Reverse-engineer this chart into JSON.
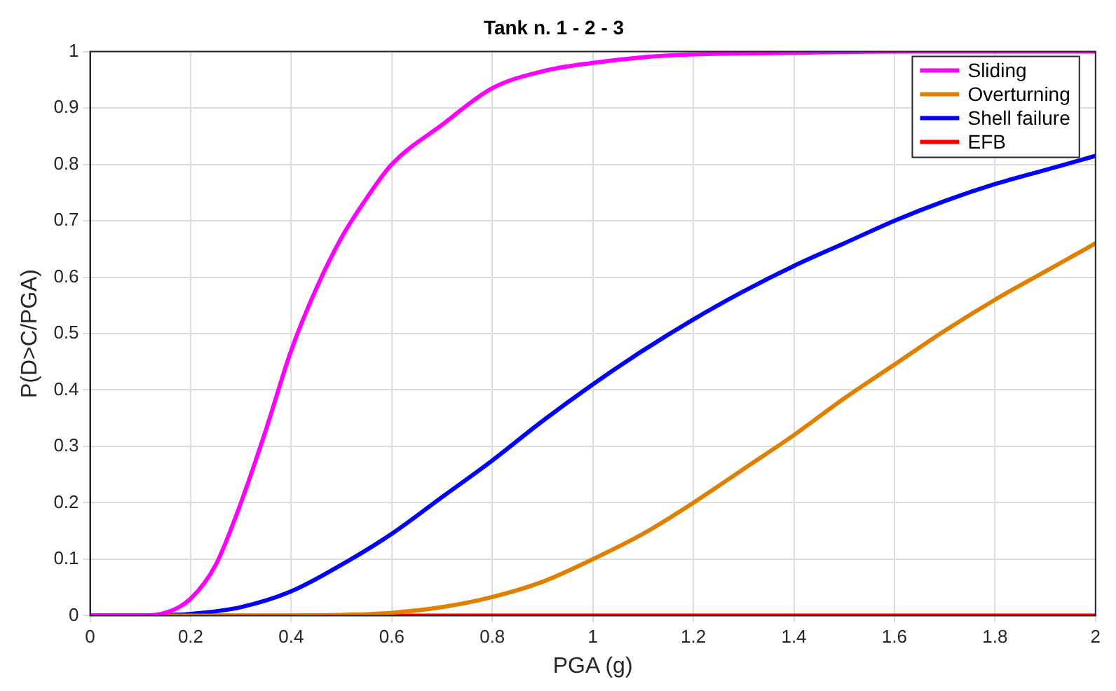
{
  "chart_data": {
    "type": "line",
    "title": "Tank n. 1 - 2 - 3",
    "xlabel": "PGA (g)",
    "ylabel": "P(D>C/PGA)",
    "xlim": [
      0,
      2
    ],
    "xticks": [
      0,
      0.2,
      0.4,
      0.6,
      0.8,
      1,
      1.2,
      1.4,
      1.6,
      1.8,
      2
    ],
    "ylim": [
      0,
      1
    ],
    "yticks": [
      0,
      0.1,
      0.2,
      0.3,
      0.4,
      0.5,
      0.6,
      0.7,
      0.8,
      0.9,
      1
    ],
    "grid": true,
    "legend": "top right",
    "marker": "none",
    "line_style": "solid",
    "series": [
      {
        "name": "Sliding",
        "color": "#ff00ff",
        "x": [
          0,
          0.1,
          0.15,
          0.2,
          0.25,
          0.3,
          0.35,
          0.4,
          0.45,
          0.5,
          0.55,
          0.6,
          0.7,
          0.8,
          0.9,
          1,
          1.1,
          1.2,
          1.4,
          1.6,
          2
        ],
        "values": [
          0,
          0,
          0.005,
          0.03,
          0.09,
          0.2,
          0.33,
          0.47,
          0.58,
          0.67,
          0.74,
          0.8,
          0.87,
          0.935,
          0.965,
          0.98,
          0.99,
          0.995,
          0.998,
          1,
          1
        ]
      },
      {
        "name": "Overturning",
        "color": "#e08000",
        "x": [
          0,
          0.4,
          0.5,
          0.6,
          0.7,
          0.8,
          0.9,
          1,
          1.1,
          1.2,
          1.3,
          1.4,
          1.5,
          1.6,
          1.7,
          1.8,
          1.9,
          2
        ],
        "values": [
          0,
          0,
          0.001,
          0.005,
          0.015,
          0.033,
          0.06,
          0.1,
          0.145,
          0.2,
          0.26,
          0.32,
          0.385,
          0.445,
          0.505,
          0.56,
          0.61,
          0.66
        ]
      },
      {
        "name": "Shell failure",
        "color": "#0000ff",
        "x": [
          0,
          0.1,
          0.2,
          0.3,
          0.4,
          0.5,
          0.6,
          0.7,
          0.8,
          0.9,
          1,
          1.1,
          1.2,
          1.3,
          1.4,
          1.5,
          1.6,
          1.7,
          1.8,
          1.9,
          2
        ],
        "values": [
          0,
          0,
          0.003,
          0.015,
          0.043,
          0.09,
          0.145,
          0.21,
          0.275,
          0.345,
          0.41,
          0.47,
          0.525,
          0.575,
          0.62,
          0.66,
          0.7,
          0.735,
          0.765,
          0.79,
          0.815
        ]
      },
      {
        "name": "EFB",
        "color": "#ff0000",
        "x": [
          0,
          2
        ],
        "values": [
          0,
          0
        ]
      }
    ]
  }
}
